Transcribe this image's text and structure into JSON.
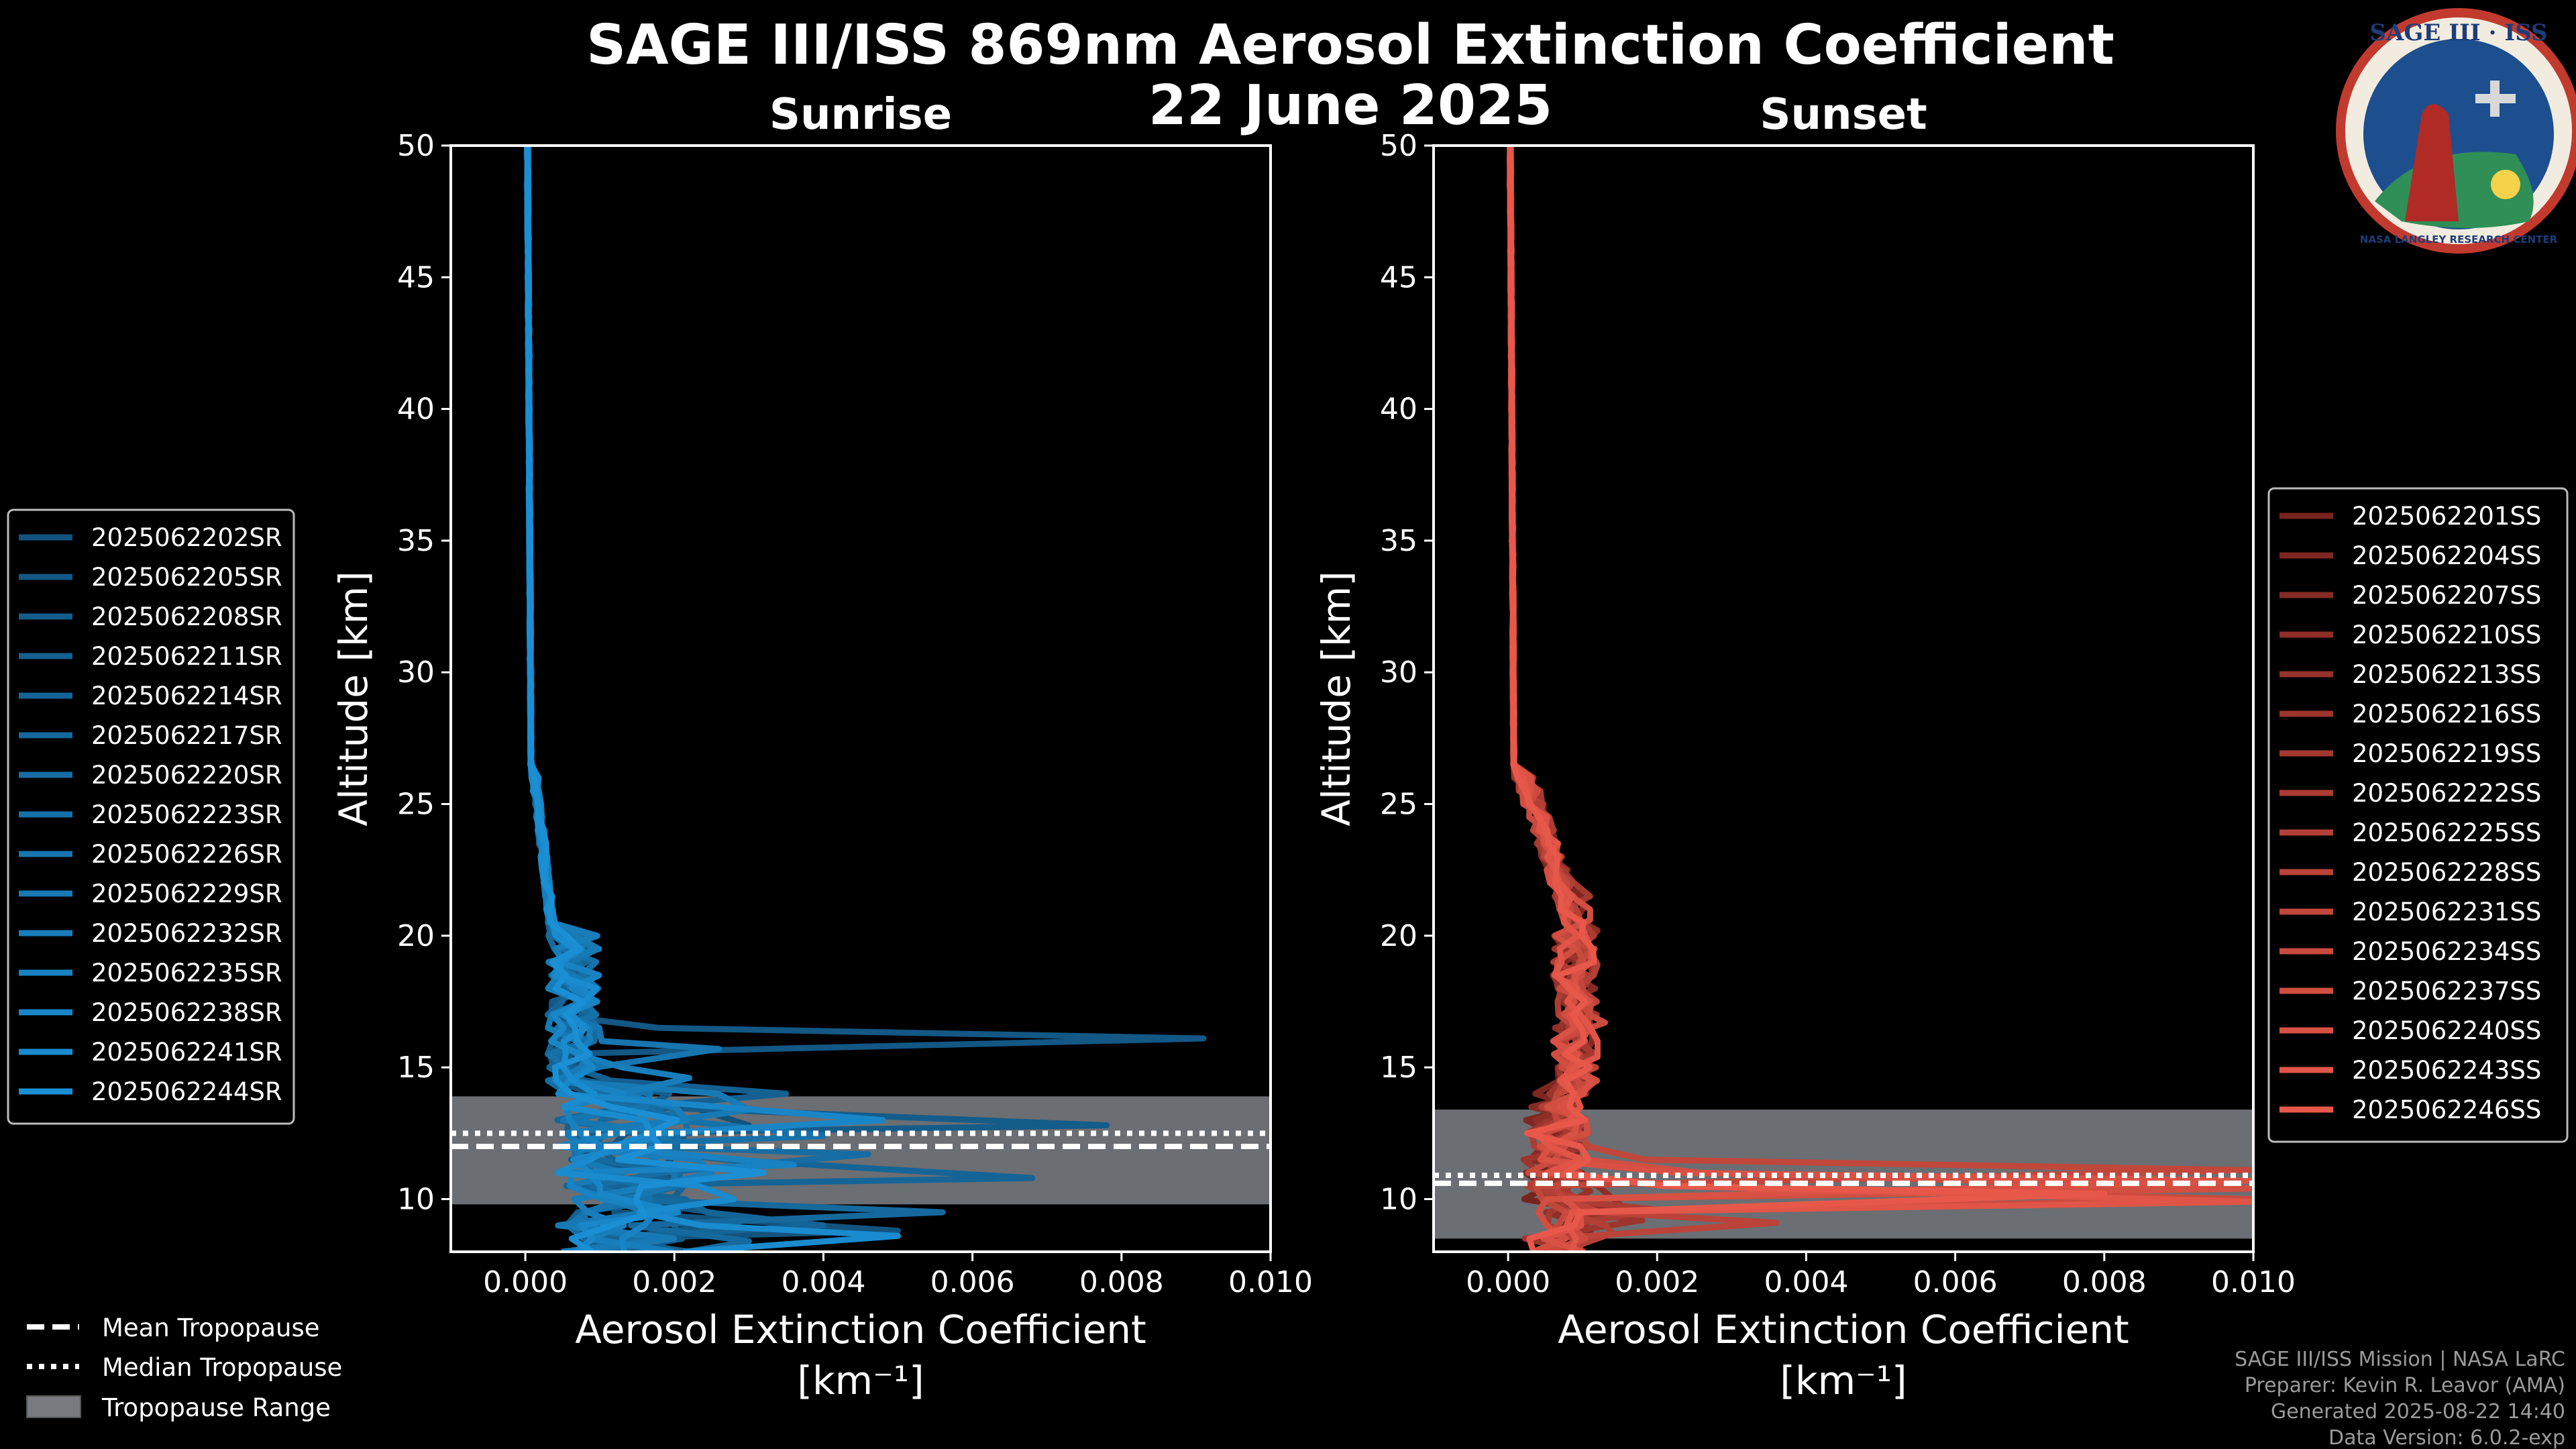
{
  "header": {
    "title_line1": "SAGE III/ISS 869nm Aerosol Extinction Coefficient",
    "title_line2": "22 June 2025"
  },
  "logo": {
    "text": "SAGE III · ISS",
    "ring_text": "NASA LANGLEY RESEARCH CENTER"
  },
  "footer": {
    "credit_lines": [
      "SAGE III/ISS Mission | NASA LaRC",
      "Preparer: Kevin R. Leavor (AMA)",
      "Generated 2025-08-22 14:40",
      "Data Version: 6.0.2-exp"
    ]
  },
  "tropopause_legend": {
    "mean": "Mean Tropopause",
    "median": "Median Tropopause",
    "range": "Tropopause Range"
  },
  "colors": {
    "sunrise": "#1a8fd4",
    "sunset": "#e8584a",
    "tropo_band": "#777a7e"
  },
  "chart_data": [
    {
      "type": "line",
      "title": "Sunrise",
      "xlabel": "Aerosol Extinction Coefficient",
      "xunit": "[km⁻¹]",
      "ylabel": "Altitude [km]",
      "xlim": [
        -0.001,
        0.01
      ],
      "ylim": [
        8,
        50
      ],
      "xticks": [
        0.0,
        0.002,
        0.004,
        0.006,
        0.008,
        0.01
      ],
      "xtick_labels": [
        "0.000",
        "0.002",
        "0.004",
        "0.006",
        "0.008",
        "0.010"
      ],
      "yticks": [
        10,
        15,
        20,
        25,
        30,
        35,
        40,
        45,
        50
      ],
      "ytick_labels": [
        "10",
        "15",
        "20",
        "25",
        "30",
        "35",
        "40",
        "45",
        "50"
      ],
      "tropopause": {
        "mean": 12.0,
        "median": 12.5,
        "range": [
          9.8,
          13.9
        ]
      },
      "legend_position": "left",
      "series": [
        {
          "name": "2025062202SR",
          "peak_x": 0.003,
          "peak_y": 12.8,
          "low_x": 0.005,
          "low_y": 8.8
        },
        {
          "name": "2025062205SR",
          "peak_x": 0.0091,
          "peak_y": 16.1,
          "low_x": 0.003,
          "low_y": 9.2
        },
        {
          "name": "2025062208SR",
          "peak_x": 0.0078,
          "peak_y": 12.8,
          "low_x": 0.002,
          "low_y": 9.6
        },
        {
          "name": "2025062211SR",
          "peak_x": 0.0035,
          "peak_y": 14.0,
          "low_x": 0.001,
          "low_y": 8.5
        },
        {
          "name": "2025062214SR",
          "peak_x": 0.0068,
          "peak_y": 10.8,
          "low_x": 0.004,
          "low_y": 9.0
        },
        {
          "name": "2025062217SR",
          "peak_x": 0.0056,
          "peak_y": 9.5,
          "low_x": 0.003,
          "low_y": 8.4
        },
        {
          "name": "2025062220SR",
          "peak_x": 0.0046,
          "peak_y": 11.7,
          "low_x": 0.0015,
          "low_y": 9.3
        },
        {
          "name": "2025062223SR",
          "peak_x": 0.004,
          "peak_y": 12.4,
          "low_x": 0.0008,
          "low_y": 8.9
        },
        {
          "name": "2025062226SR",
          "peak_x": 0.0026,
          "peak_y": 15.7,
          "low_x": 0.002,
          "low_y": 10.5
        },
        {
          "name": "2025062229SR",
          "peak_x": 0.003,
          "peak_y": 13.4,
          "low_x": 0.0012,
          "low_y": 9.9
        },
        {
          "name": "2025062232SR",
          "peak_x": 0.0022,
          "peak_y": 14.6,
          "low_x": 0.0025,
          "low_y": 11.0
        },
        {
          "name": "2025062235SR",
          "peak_x": 0.0036,
          "peak_y": 11.3,
          "low_x": 0.0018,
          "low_y": 9.7
        },
        {
          "name": "2025062238SR",
          "peak_x": 0.0048,
          "peak_y": 13.0,
          "low_x": 0.001,
          "low_y": 10.2
        },
        {
          "name": "2025062241SR",
          "peak_x": 0.005,
          "peak_y": 8.6,
          "low_x": 0.0028,
          "low_y": 10.0
        },
        {
          "name": "2025062244SR",
          "peak_x": 0.0032,
          "peak_y": 11.0,
          "low_x": 0.0016,
          "low_y": 9.4
        }
      ]
    },
    {
      "type": "line",
      "title": "Sunset",
      "xlabel": "Aerosol Extinction Coefficient",
      "xunit": "[km⁻¹]",
      "ylabel": "Altitude [km]",
      "xlim": [
        -0.001,
        0.01
      ],
      "ylim": [
        8,
        50
      ],
      "xticks": [
        0.0,
        0.002,
        0.004,
        0.006,
        0.008,
        0.01
      ],
      "xtick_labels": [
        "0.000",
        "0.002",
        "0.004",
        "0.006",
        "0.008",
        "0.010"
      ],
      "yticks": [
        10,
        15,
        20,
        25,
        30,
        35,
        40,
        45,
        50
      ],
      "ytick_labels": [
        "10",
        "15",
        "20",
        "25",
        "30",
        "35",
        "40",
        "45",
        "50"
      ],
      "tropopause": {
        "mean": 10.6,
        "median": 10.9,
        "range": [
          8.5,
          13.4
        ]
      },
      "legend_position": "right",
      "series": [
        {
          "name": "2025062201SS",
          "peak_x": 0.0011,
          "peak_y": 19.2,
          "low_x": 0.0012,
          "low_y": 9.0
        },
        {
          "name": "2025062204SS",
          "peak_x": 0.001,
          "peak_y": 21.0,
          "low_x": 0.0008,
          "low_y": 9.5
        },
        {
          "name": "2025062207SS",
          "peak_x": 0.0009,
          "peak_y": 18.4,
          "low_x": 0.001,
          "low_y": 8.8
        },
        {
          "name": "2025062210SS",
          "peak_x": 0.0012,
          "peak_y": 20.2,
          "low_x": 0.0015,
          "low_y": 9.8
        },
        {
          "name": "2025062213SS",
          "peak_x": 0.0008,
          "peak_y": 17.0,
          "low_x": 0.0011,
          "low_y": 10.3
        },
        {
          "name": "2025062216SS",
          "peak_x": 0.001,
          "peak_y": 16.1,
          "low_x": 0.0018,
          "low_y": 9.2
        },
        {
          "name": "2025062219SS",
          "peak_x": 0.0011,
          "peak_y": 21.5,
          "low_x": 0.0009,
          "low_y": 10.0
        },
        {
          "name": "2025062222SS",
          "peak_x": 0.0009,
          "peak_y": 15.0,
          "low_x": 0.002,
          "low_y": 9.6
        },
        {
          "name": "2025062225SS",
          "peak_x": 0.0012,
          "peak_y": 18.9,
          "low_x": 0.0014,
          "low_y": 8.7
        },
        {
          "name": "2025062228SS",
          "peak_x": 0.0008,
          "peak_y": 19.8,
          "low_x": 0.0036,
          "low_y": 9.1
        },
        {
          "name": "2025062231SS",
          "peak_x": 0.001,
          "peak_y": 17.6,
          "low_x": 0.01,
          "low_y": 11.1
        },
        {
          "name": "2025062234SS",
          "peak_x": 0.0013,
          "peak_y": 16.7,
          "low_x": 0.01,
          "low_y": 10.0
        },
        {
          "name": "2025062237SS",
          "peak_x": 0.0011,
          "peak_y": 20.6,
          "low_x": 0.01,
          "low_y": 10.4
        },
        {
          "name": "2025062240SS",
          "peak_x": 0.0009,
          "peak_y": 18.0,
          "low_x": 0.01,
          "low_y": 10.7
        },
        {
          "name": "2025062243SS",
          "peak_x": 0.0012,
          "peak_y": 15.4,
          "low_x": 0.01,
          "low_y": 9.9
        },
        {
          "name": "2025062246SS",
          "peak_x": 0.001,
          "peak_y": 16.4,
          "low_x": 0.008,
          "low_y": 10.2
        }
      ]
    }
  ]
}
